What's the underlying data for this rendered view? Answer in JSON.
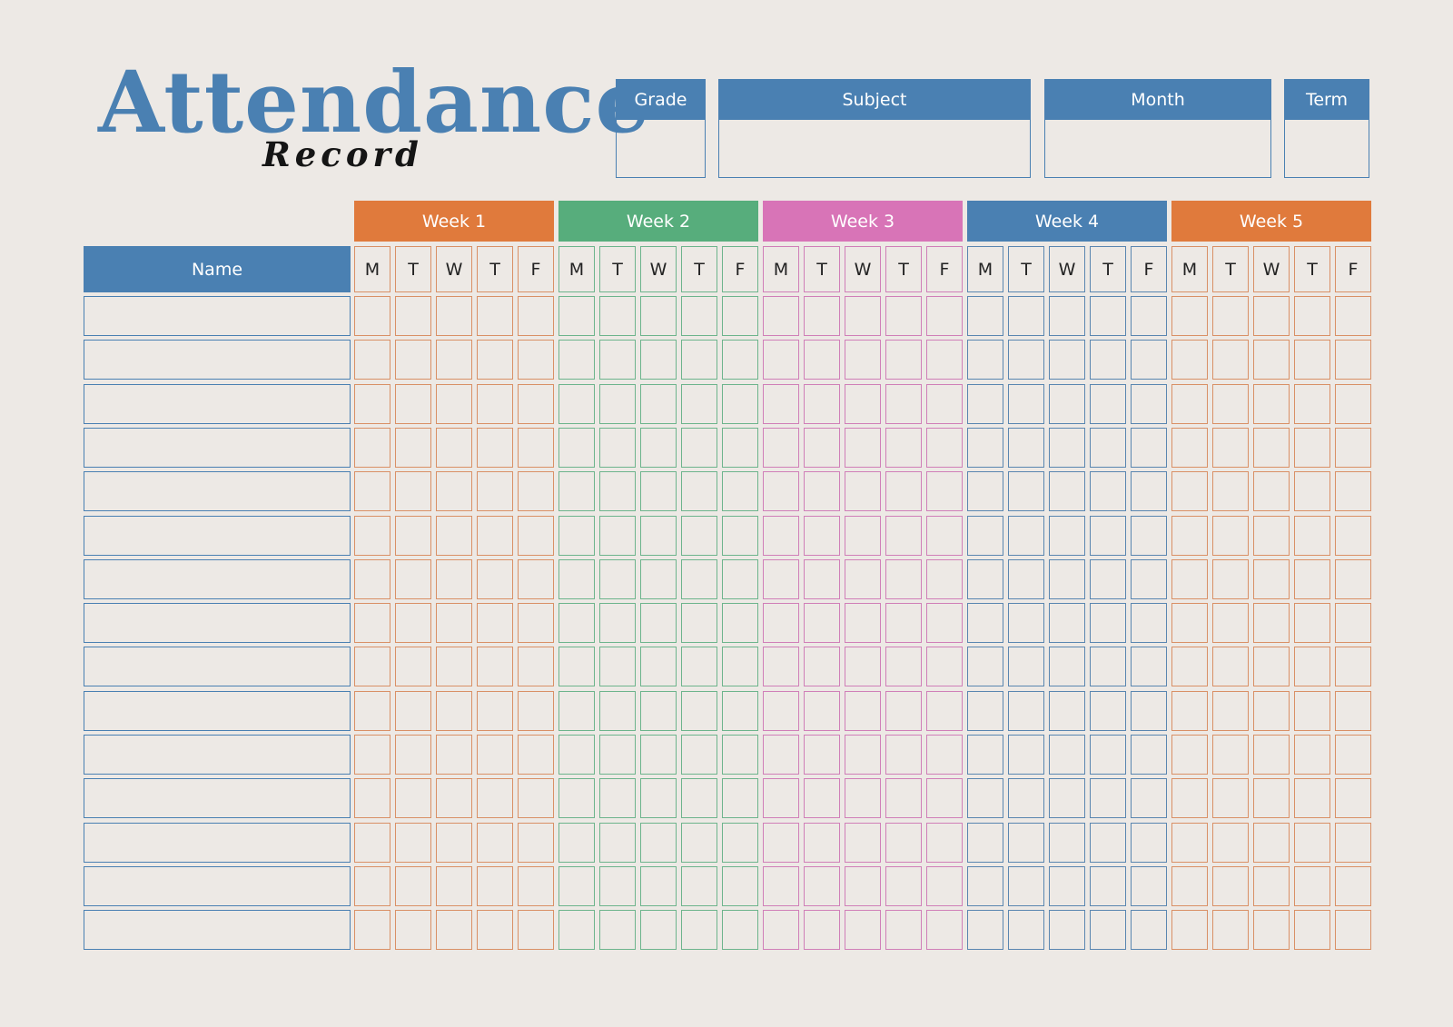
{
  "header": {
    "title": "Attendance",
    "subtitle": "Record"
  },
  "info_fields": [
    {
      "label": "Grade",
      "value": ""
    },
    {
      "label": "Subject",
      "value": ""
    },
    {
      "label": "Month",
      "value": ""
    },
    {
      "label": "Term",
      "value": ""
    }
  ],
  "name_header": "Name",
  "days": [
    "M",
    "T",
    "W",
    "T",
    "F"
  ],
  "weeks": [
    {
      "label": "Week 1",
      "color": "#e07a3c",
      "border": "#d99066"
    },
    {
      "label": "Week 2",
      "color": "#57ad7c",
      "border": "#6db48c"
    },
    {
      "label": "Week 3",
      "color": "#d874b7",
      "border": "#d07fb8"
    },
    {
      "label": "Week 4",
      "color": "#4a80b2",
      "border": "#5a86b0"
    },
    {
      "label": "Week 5",
      "color": "#e07a3c",
      "border": "#d99066"
    }
  ],
  "students": [
    "",
    "",
    "",
    "",
    "",
    "",
    "",
    "",
    "",
    "",
    "",
    "",
    "",
    "",
    ""
  ],
  "colors": {
    "background": "#ede9e5",
    "accent": "#4a80b2",
    "title_dark": "#151515"
  }
}
